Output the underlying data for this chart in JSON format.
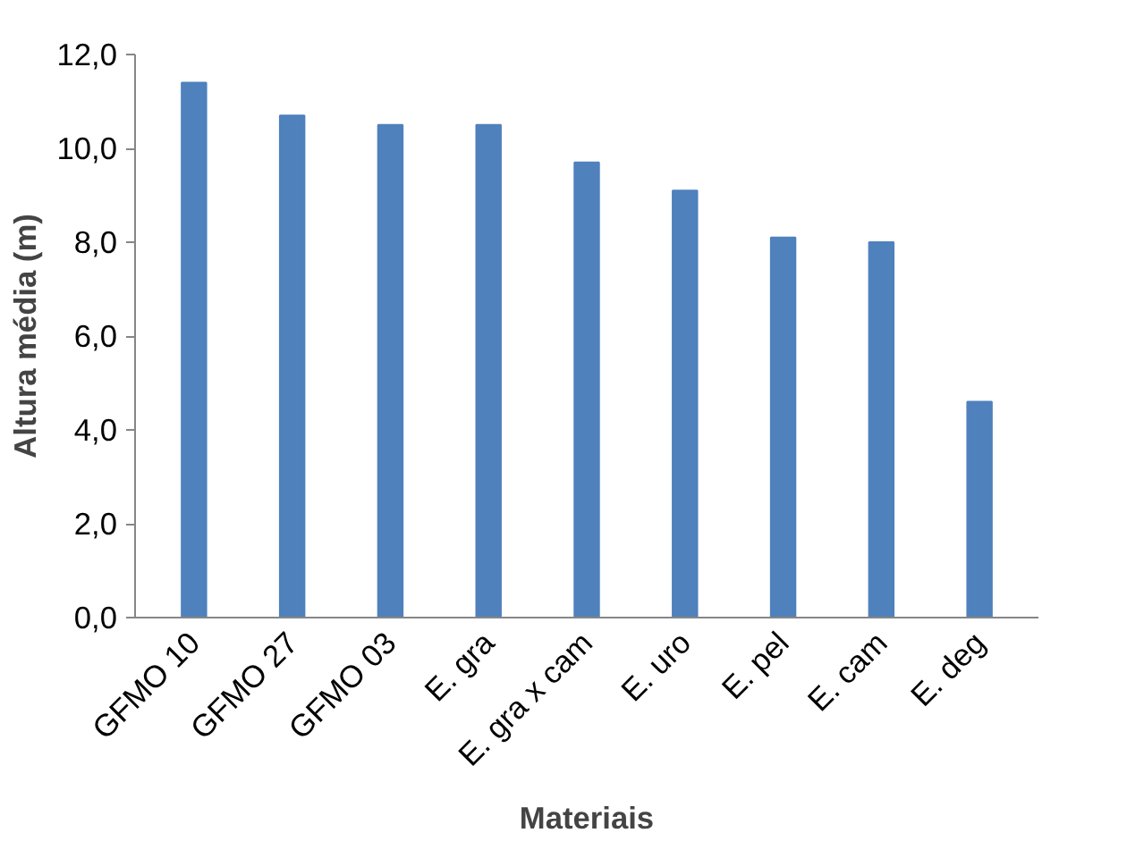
{
  "chart_data": {
    "type": "bar",
    "xlabel": "Materiais",
    "ylabel": "Altura média (m)",
    "categories": [
      "GFMO 10",
      "GFMO 27",
      "GFMO 03",
      "E. gra",
      "E. gra x cam",
      "E. uro",
      "E. pel",
      "E. cam",
      "E. deg"
    ],
    "values": [
      11.4,
      10.7,
      10.5,
      10.5,
      9.7,
      9.1,
      8.1,
      8.0,
      4.6
    ],
    "color": "#4f81bd",
    "ylim": [
      0,
      12
    ],
    "yticks": [
      {
        "value": 0,
        "label": "0,0"
      },
      {
        "value": 2,
        "label": "2,0"
      },
      {
        "value": 4,
        "label": "4,0"
      },
      {
        "value": 6,
        "label": "6,0"
      },
      {
        "value": 8,
        "label": "8,0"
      },
      {
        "value": 10,
        "label": "10,0"
      },
      {
        "value": 12,
        "label": "12,0"
      }
    ],
    "grid": false
  }
}
